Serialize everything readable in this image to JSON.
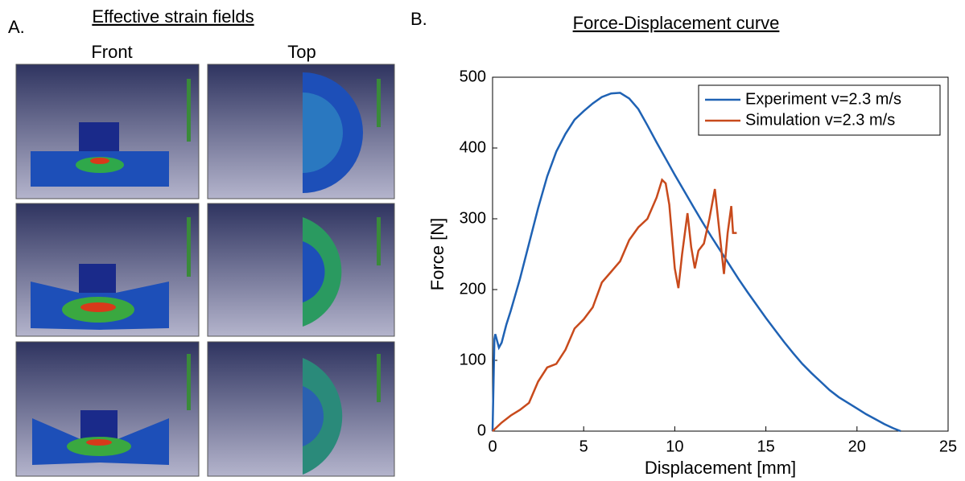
{
  "panel_a": {
    "label": "A.",
    "title": "Effective strain fields",
    "columns": [
      "Front",
      "Top"
    ]
  },
  "panel_b": {
    "label": "B."
  },
  "chart_data": {
    "type": "line",
    "title": "Force-Displacement curve",
    "x_label": "Displacement [mm]",
    "y_label": "Force [N]",
    "xlim": [
      0,
      25
    ],
    "ylim": [
      0,
      500
    ],
    "xticks": [
      0,
      5,
      10,
      15,
      20,
      25
    ],
    "yticks": [
      0,
      100,
      200,
      300,
      400,
      500
    ],
    "grid": false,
    "legend": "upper right",
    "series": [
      {
        "name": "Experiment v=2.3 m/s",
        "color": "#1f62b4",
        "x": [
          0,
          0.1,
          0.15,
          0.35,
          0.5,
          0.75,
          1,
          1.5,
          2,
          2.5,
          3,
          3.5,
          4,
          4.5,
          5,
          5.5,
          6,
          6.5,
          7,
          7.5,
          8,
          8.5,
          9,
          9.5,
          10,
          10.5,
          11,
          11.5,
          12,
          12.5,
          13,
          13.5,
          14,
          14.5,
          15,
          15.5,
          16,
          16.5,
          17,
          17.5,
          18,
          18.5,
          19,
          19.5,
          20,
          20.5,
          21,
          21.5,
          22,
          22.4
        ],
        "values": [
          0,
          130,
          137,
          118,
          125,
          150,
          170,
          215,
          265,
          315,
          360,
          395,
          420,
          440,
          452,
          463,
          472,
          477,
          478,
          470,
          455,
          432,
          408,
          385,
          362,
          340,
          318,
          296,
          275,
          255,
          235,
          215,
          196,
          178,
          160,
          143,
          126,
          110,
          95,
          82,
          70,
          58,
          48,
          40,
          32,
          24,
          17,
          10,
          4,
          0
        ]
      },
      {
        "name": "Simulation v=2.3 m/s",
        "color": "#c84a1c",
        "x": [
          0,
          0.5,
          1,
          1.5,
          2,
          2.5,
          3,
          3.5,
          4,
          4.5,
          5,
          5.5,
          6,
          6.5,
          7,
          7.5,
          8,
          8.5,
          9,
          9.3,
          9.5,
          9.7,
          10,
          10.2,
          10.4,
          10.7,
          10.9,
          11.1,
          11.3,
          11.6,
          11.9,
          12.2,
          12.5,
          12.7,
          12.9,
          13.1,
          13.2,
          13.4
        ],
        "values": [
          0,
          12,
          22,
          30,
          40,
          70,
          90,
          95,
          115,
          145,
          158,
          175,
          210,
          225,
          240,
          270,
          288,
          300,
          330,
          355,
          350,
          320,
          230,
          202,
          250,
          308,
          260,
          230,
          255,
          265,
          300,
          342,
          270,
          222,
          280,
          318,
          280,
          280
        ]
      }
    ]
  }
}
